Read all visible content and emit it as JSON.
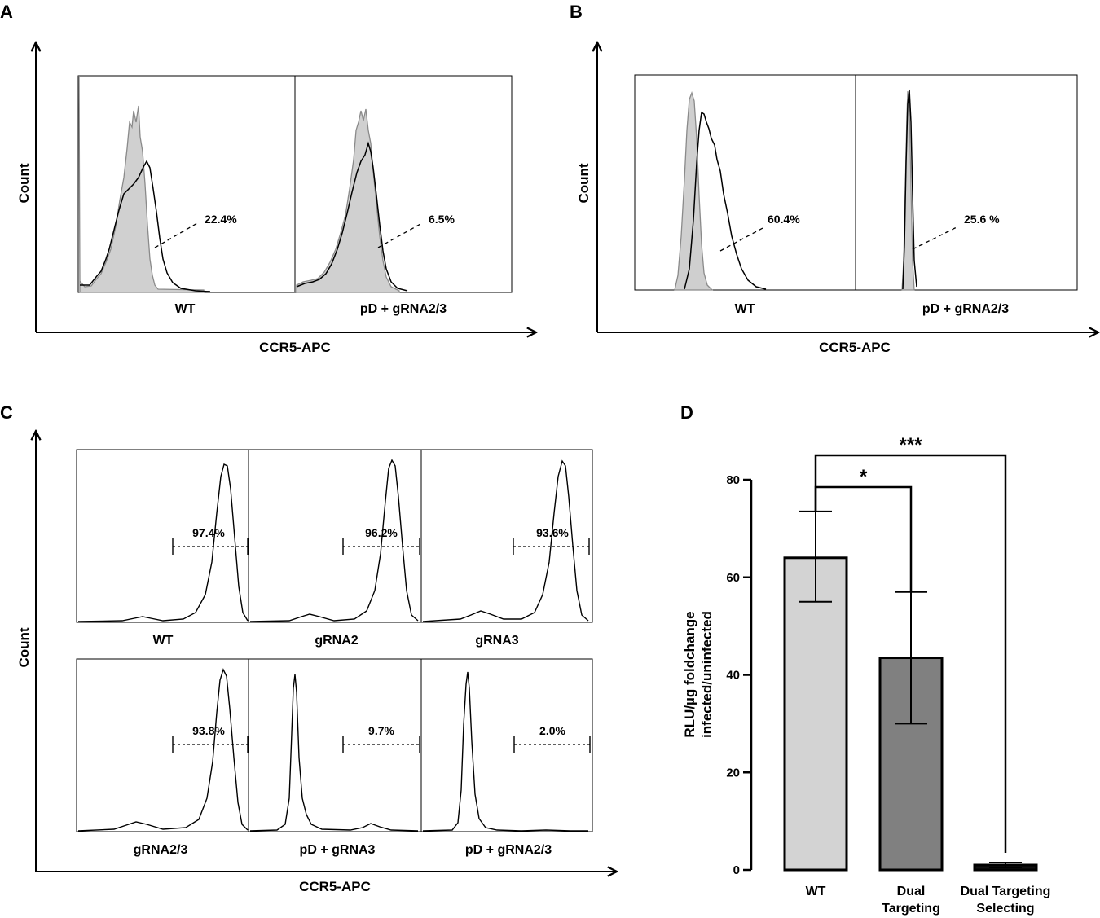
{
  "panels": {
    "A": {
      "label": "A",
      "xlabel": "CCR5-APC",
      "ylabel": "Count",
      "samples": [
        {
          "name": "WT",
          "percent": "22.4%"
        },
        {
          "name": "pD + gRNA2/3",
          "percent": "6.5%"
        }
      ]
    },
    "B": {
      "label": "B",
      "xlabel": "CCR5-APC",
      "ylabel": "Count",
      "samples": [
        {
          "name": "WT",
          "percent": "60.4%"
        },
        {
          "name": "pD + gRNA2/3",
          "percent": "25.6 %"
        }
      ]
    },
    "C": {
      "label": "C",
      "xlabel": "CCR5-APC",
      "ylabel": "Count",
      "samples": [
        {
          "name": "WT",
          "percent": "97.4%"
        },
        {
          "name": "gRNA2",
          "percent": "96.2%"
        },
        {
          "name": "gRNA3",
          "percent": "93.6%"
        },
        {
          "name": "gRNA2/3",
          "percent": "93.8%"
        },
        {
          "name": "pD + gRNA3",
          "percent": "9.7%"
        },
        {
          "name": "pD + gRNA2/3",
          "percent": "2.0%"
        }
      ]
    },
    "D": {
      "label": "D"
    }
  },
  "chart_data": {
    "type": "bar",
    "title": "",
    "xlabel": "",
    "ylabel": "RLU/µg foldchange infected/uninfected",
    "ylabel_lines": [
      "RLU/µg foldchange",
      "infected/uninfected"
    ],
    "ylim": [
      0,
      80
    ],
    "yticks": [
      0,
      20,
      40,
      60,
      80
    ],
    "categories": [
      "WT",
      "Dual Targeting",
      "Dual Targeting Selecting"
    ],
    "category_lines": [
      [
        "WT"
      ],
      [
        "Dual",
        "Targeting"
      ],
      [
        "Dual Targeting",
        "Selecting"
      ]
    ],
    "values": [
      64,
      43.5,
      1
    ],
    "error_low": [
      55,
      30,
      0.5
    ],
    "error_high": [
      73.5,
      57,
      1.5
    ],
    "colors": [
      "#d3d3d3",
      "#808080",
      "#111111"
    ],
    "significance": [
      {
        "from": "WT",
        "to": "Dual Targeting",
        "label": "*"
      },
      {
        "from": "WT",
        "to": "Dual Targeting Selecting",
        "label": "***"
      }
    ]
  }
}
